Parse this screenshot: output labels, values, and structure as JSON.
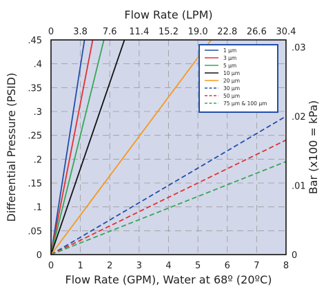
{
  "chart_data": {
    "type": "line",
    "x_bottom_label": "Flow Rate (GPM), Water at 68º (20ºC)",
    "x_top_label": "Flow Rate (LPM)",
    "y_left_label": "Differential Pressure (PSID)",
    "y_right_label": "Bar (x100 = kPa)",
    "xlim": [
      0,
      8
    ],
    "ylim": [
      0,
      0.45
    ],
    "x_bottom_ticks": [
      "0",
      "1",
      "2",
      "3",
      "4",
      "5",
      "6",
      "7",
      "8"
    ],
    "x_top_ticks": [
      "0",
      "3.8",
      "7.6",
      "11.4",
      "15.2",
      "19.0",
      "22.8",
      "26.6",
      "30.4"
    ],
    "y_left_ticks": [
      "0",
      ".05",
      ".1",
      ".15",
      ".2",
      ".25",
      ".3",
      ".35",
      ".4",
      ".45"
    ],
    "y_right_ticks": [
      {
        "value": 0,
        "label": "0"
      },
      {
        "value": 0.145,
        "label": ".01"
      },
      {
        "value": 0.29,
        "label": ".02"
      },
      {
        "value": 0.435,
        "label": ".03"
      }
    ],
    "grid": true,
    "legend_position": "top-right",
    "series": [
      {
        "name": "1 µm",
        "color": "#1f4fa8",
        "dash": false,
        "x": [
          0,
          1.14
        ],
        "y": [
          0,
          0.45
        ]
      },
      {
        "name": "3 µm",
        "color": "#e0312f",
        "dash": false,
        "x": [
          0,
          1.42
        ],
        "y": [
          0,
          0.45
        ]
      },
      {
        "name": "5 µm",
        "color": "#34a853",
        "dash": false,
        "x": [
          0,
          1.8
        ],
        "y": [
          0,
          0.45
        ]
      },
      {
        "name": "10 µm",
        "color": "#111111",
        "dash": false,
        "x": [
          0,
          2.5
        ],
        "y": [
          0,
          0.45
        ]
      },
      {
        "name": "20 µm",
        "color": "#f39a1c",
        "dash": false,
        "x": [
          0,
          5.45
        ],
        "y": [
          0,
          0.45
        ]
      },
      {
        "name": "30 µm",
        "color": "#1f4fa8",
        "dash": true,
        "x": [
          0,
          8
        ],
        "y": [
          0,
          0.29
        ]
      },
      {
        "name": "50 µm",
        "color": "#e0312f",
        "dash": true,
        "x": [
          0,
          8
        ],
        "y": [
          0,
          0.24
        ]
      },
      {
        "name": "75 µm & 100 µm",
        "color": "#34a853",
        "dash": true,
        "x": [
          0,
          8
        ],
        "y": [
          0,
          0.195
        ]
      }
    ]
  }
}
